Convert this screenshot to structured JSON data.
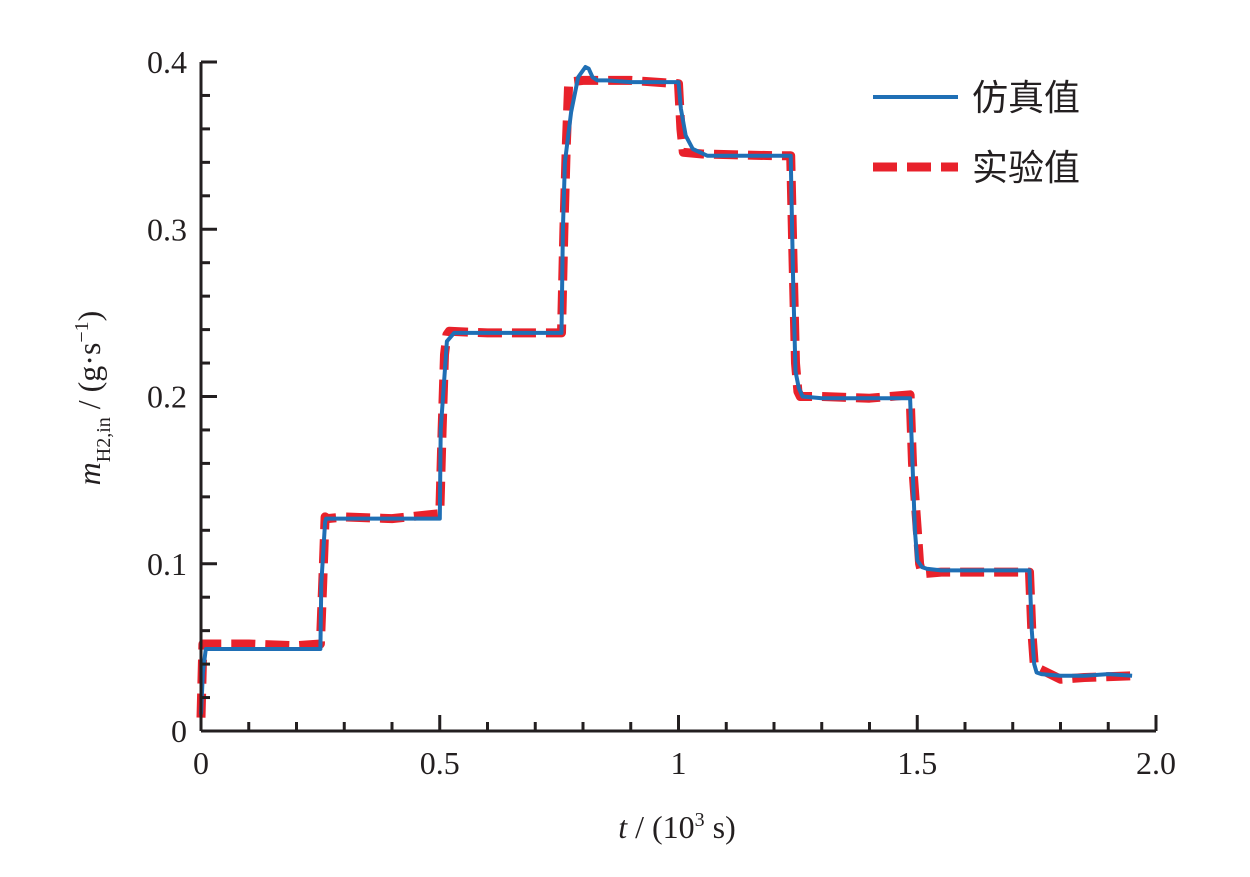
{
  "chart_data": {
    "type": "line",
    "title": "",
    "xlabel": {
      "var": "t",
      "sep": " / ",
      "open": "(10",
      "sup": "3",
      "close": " s)"
    },
    "ylabel": {
      "var": "m",
      "sub": "H2,in",
      "sep": " / ",
      "open": "(g·s",
      "sup": "−1",
      "close": ")"
    },
    "xlim": [
      0,
      2.0
    ],
    "ylim": [
      0,
      0.4
    ],
    "xticks": [
      {
        "value": 0,
        "label": "0"
      },
      {
        "value": 0.5,
        "label": "0.5"
      },
      {
        "value": 1.0,
        "label": "1"
      },
      {
        "value": 1.5,
        "label": "1.5"
      },
      {
        "value": 2.0,
        "label": "2.0"
      }
    ],
    "yticks": [
      {
        "value": 0,
        "label": "0"
      },
      {
        "value": 0.1,
        "label": "0.1"
      },
      {
        "value": 0.2,
        "label": "0.2"
      },
      {
        "value": 0.3,
        "label": "0.3"
      },
      {
        "value": 0.4,
        "label": "0.4"
      }
    ],
    "grid": false,
    "legend_position": "top-right",
    "series": [
      {
        "name": "仿真值",
        "color": "#1f6fb5",
        "style": "solid",
        "x": [
          0,
          0.004,
          0.01,
          0.02,
          0.05,
          0.1,
          0.2,
          0.25,
          0.252,
          0.26,
          0.262,
          0.28,
          0.35,
          0.45,
          0.5,
          0.502,
          0.515,
          0.53,
          0.6,
          0.7,
          0.755,
          0.758,
          0.762,
          0.775,
          0.79,
          0.805,
          0.812,
          0.82,
          0.83,
          0.85,
          0.9,
          0.95,
          1.0,
          1.005,
          1.015,
          1.03,
          1.06,
          1.1,
          1.2,
          1.235,
          1.24,
          1.245,
          1.252,
          1.26,
          1.3,
          1.4,
          1.485,
          1.49,
          1.495,
          1.5,
          1.51,
          1.52,
          1.55,
          1.6,
          1.7,
          1.735,
          1.74,
          1.745,
          1.75,
          1.76,
          1.8,
          1.85,
          1.9,
          1.95
        ],
        "y": [
          0.01,
          0.035,
          0.049,
          0.049,
          0.049,
          0.049,
          0.049,
          0.049,
          0.088,
          0.125,
          0.127,
          0.127,
          0.127,
          0.127,
          0.127,
          0.18,
          0.233,
          0.238,
          0.238,
          0.238,
          0.238,
          0.3,
          0.34,
          0.37,
          0.391,
          0.397,
          0.396,
          0.391,
          0.389,
          0.389,
          0.388,
          0.388,
          0.388,
          0.372,
          0.356,
          0.348,
          0.344,
          0.344,
          0.344,
          0.344,
          0.27,
          0.215,
          0.205,
          0.2,
          0.199,
          0.199,
          0.199,
          0.16,
          0.12,
          0.102,
          0.098,
          0.097,
          0.096,
          0.096,
          0.096,
          0.096,
          0.06,
          0.04,
          0.035,
          0.034,
          0.033,
          0.033,
          0.034,
          0.033
        ]
      },
      {
        "name": "实验值",
        "color": "#e8212b",
        "style": "dashed",
        "x": [
          0,
          0.004,
          0.008,
          0.02,
          0.1,
          0.2,
          0.25,
          0.255,
          0.26,
          0.265,
          0.3,
          0.4,
          0.5,
          0.505,
          0.51,
          0.515,
          0.52,
          0.6,
          0.7,
          0.755,
          0.76,
          0.765,
          0.77,
          0.8,
          0.9,
          1.0,
          1.005,
          1.01,
          1.05,
          1.2,
          1.235,
          1.24,
          1.245,
          1.25,
          1.255,
          1.3,
          1.4,
          1.485,
          1.49,
          1.495,
          1.5,
          1.505,
          1.51,
          1.55,
          1.7,
          1.735,
          1.74,
          1.745,
          1.75,
          1.8,
          1.85,
          1.95
        ],
        "y": [
          0.008,
          0.052,
          0.052,
          0.052,
          0.052,
          0.051,
          0.052,
          0.09,
          0.128,
          0.127,
          0.128,
          0.127,
          0.13,
          0.18,
          0.225,
          0.237,
          0.239,
          0.238,
          0.238,
          0.238,
          0.3,
          0.35,
          0.388,
          0.389,
          0.389,
          0.387,
          0.36,
          0.346,
          0.345,
          0.344,
          0.344,
          0.28,
          0.22,
          0.203,
          0.2,
          0.2,
          0.199,
          0.201,
          0.16,
          0.14,
          0.12,
          0.1,
          0.094,
          0.095,
          0.095,
          0.095,
          0.06,
          0.04,
          0.038,
          0.031,
          0.032,
          0.033
        ]
      }
    ]
  }
}
